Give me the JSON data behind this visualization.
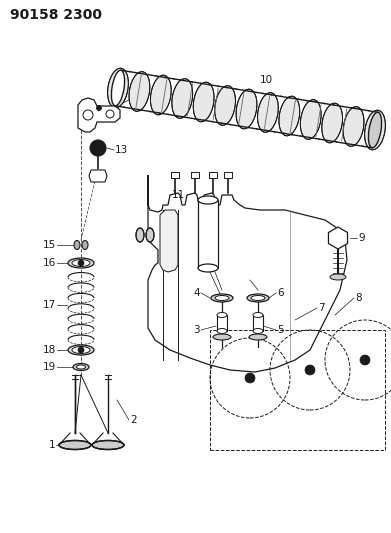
{
  "title": "90158 2300",
  "background_color": "#ffffff",
  "line_color": "#1a1a1a",
  "title_fontsize": 10,
  "label_fontsize": 7.5
}
